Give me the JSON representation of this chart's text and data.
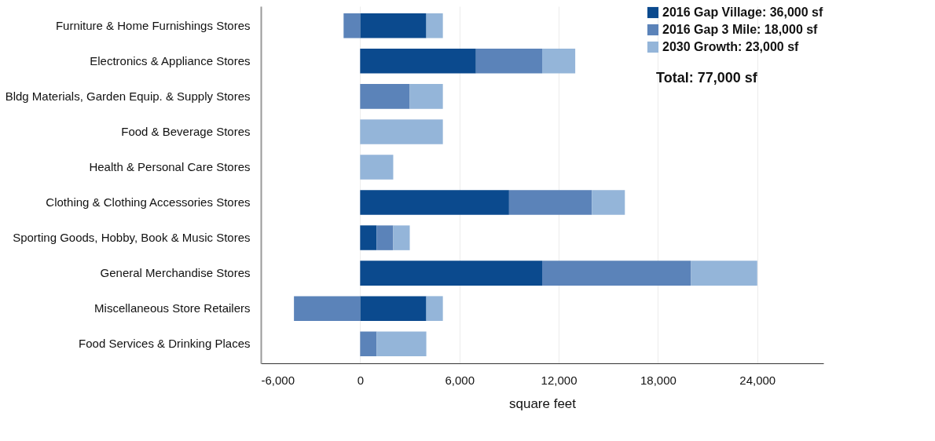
{
  "chart_data": {
    "type": "bar",
    "orientation": "horizontal",
    "stacked": true,
    "xlabel": "square feet",
    "categories": [
      "Furniture & Home Furnishings Stores",
      "Electronics & Appliance Stores",
      "Bldg Materials, Garden Equip. & Supply Stores",
      "Food & Beverage Stores",
      "Health & Personal Care Stores",
      "Clothing & Clothing Accessories Stores",
      "Sporting Goods, Hobby, Book & Music Stores",
      "General Merchandise Stores",
      "Miscellaneous Store Retailers",
      "Food Services & Drinking Places"
    ],
    "series": [
      {
        "name": "2016 Gap Village: 36,000 sf",
        "color": "#0b4a8e",
        "values": [
          4000,
          7000,
          0,
          0,
          0,
          9000,
          1000,
          11000,
          4000,
          0
        ]
      },
      {
        "name": "2016 Gap 3 Mile: 18,000 sf",
        "color": "#5b83b9",
        "values": [
          -1000,
          4000,
          3000,
          0,
          0,
          5000,
          1000,
          9000,
          -4000,
          1000
        ]
      },
      {
        "name": "2030 Growth: 23,000 sf",
        "color": "#94b5d9",
        "values": [
          1000,
          2000,
          2000,
          5000,
          2000,
          2000,
          1000,
          4000,
          1000,
          3000
        ]
      }
    ],
    "xlim": [
      -6000,
      28000
    ],
    "xticks": [
      {
        "value": -6000,
        "label": "-6,000"
      },
      0,
      {
        "value": 6000,
        "label": "6,000"
      },
      {
        "value": 12000,
        "label": "12,000"
      },
      {
        "value": 18000,
        "label": "18,000"
      },
      {
        "value": 24000,
        "label": "24,000"
      }
    ],
    "grid": "x",
    "legend": "top right",
    "annotations": [
      "Total: 77,000 sf"
    ]
  }
}
